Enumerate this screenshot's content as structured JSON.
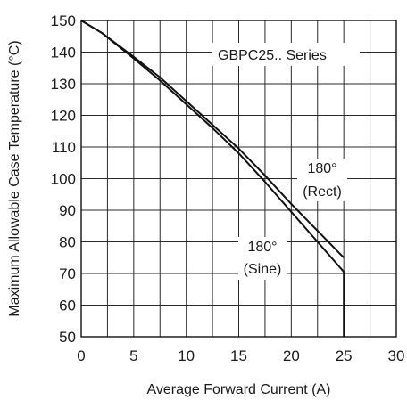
{
  "chart_data": {
    "type": "line",
    "title": "",
    "xlabel": "Average Forward Current (A)",
    "ylabel": "Maximum Allowable Case Temperature (°C)",
    "xlim": [
      0,
      30
    ],
    "ylim": [
      50,
      150
    ],
    "x_ticks": [
      "0",
      "5",
      "10",
      "15",
      "20",
      "25",
      "30"
    ],
    "y_ticks": [
      "50",
      "60",
      "70",
      "80",
      "90",
      "100",
      "110",
      "120",
      "130",
      "140",
      "150"
    ],
    "grid": true,
    "annotations": {
      "series_label": "GBPC25.. Series",
      "rect_line1": "180°",
      "rect_line2": "(Rect)",
      "sine_line1": "180°",
      "sine_line2": "(Sine)"
    },
    "series": [
      {
        "label": "180° (Rect)",
        "x": [
          0,
          2,
          5,
          7.5,
          10,
          12.5,
          15,
          17.5,
          20,
          22.5,
          25
        ],
        "y": [
          150,
          146,
          138.5,
          132,
          124.5,
          117,
          109.5,
          101,
          92,
          83.5,
          75
        ]
      },
      {
        "label": "180° (Sine)",
        "x": [
          0,
          2,
          5,
          7.5,
          10,
          12.5,
          15,
          17.5,
          20,
          22.5,
          25,
          25
        ],
        "y": [
          150,
          146,
          138,
          131,
          123.5,
          116,
          108,
          99,
          89.5,
          80,
          70.5,
          50
        ]
      }
    ]
  }
}
